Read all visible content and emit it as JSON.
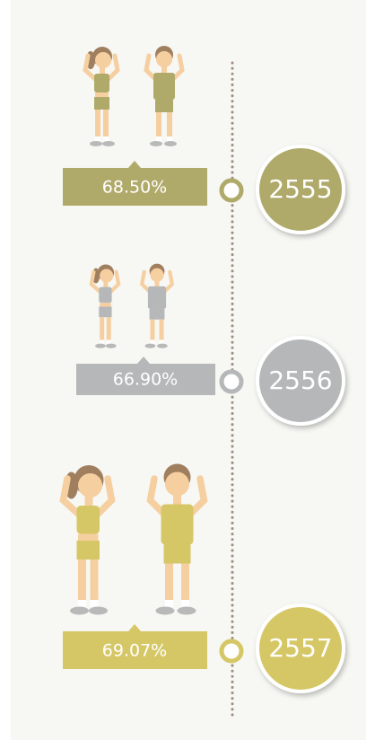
{
  "items": [
    {
      "percent": "68.50%",
      "year": "2555"
    },
    {
      "percent": "66.90%",
      "year": "2556"
    },
    {
      "percent": "69.07%",
      "year": "2557"
    }
  ]
}
